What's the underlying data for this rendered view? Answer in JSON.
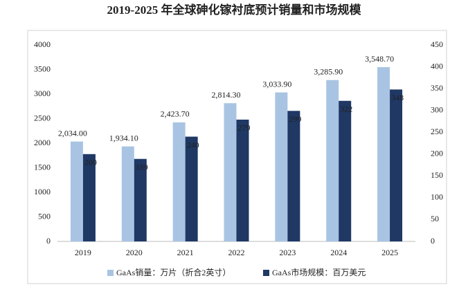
{
  "chart_data": {
    "type": "bar",
    "title": "2019-2025 年全球砷化镓衬底预计销量和市场规模",
    "categories": [
      "2019",
      "2020",
      "2021",
      "2022",
      "2023",
      "2024",
      "2025"
    ],
    "series": [
      {
        "name": "GaAs销量：万片（折合2英寸）",
        "color": "#a9c4e3",
        "values": [
          2034.0,
          1934.1,
          2423.7,
          2814.3,
          3033.9,
          3285.9,
          3548.7
        ],
        "value_labels": [
          "2,034.00",
          "1,934.10",
          "2,423.70",
          "2,814.30",
          "3,033.90",
          "3,285.90",
          "3,548.70"
        ]
      },
      {
        "name": "GaAs市场规模：百万美元",
        "color": "#1f3864",
        "axis": "y2",
        "values": [
          200,
          189,
          240,
          279,
          299,
          322,
          348
        ]
      }
    ],
    "ylim": [
      0,
      4000
    ],
    "yticks": [
      0,
      500,
      1000,
      1500,
      2000,
      2500,
      3000,
      3500,
      4000
    ],
    "y2lim": [
      0,
      450
    ],
    "y2ticks": [
      0,
      50,
      100,
      150,
      200,
      250,
      300,
      350,
      400,
      450
    ],
    "grid": false
  }
}
